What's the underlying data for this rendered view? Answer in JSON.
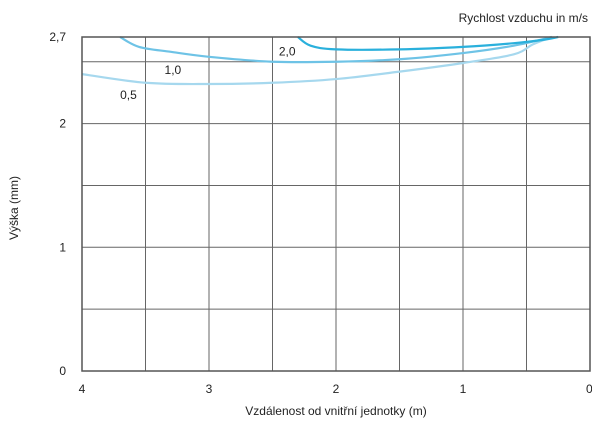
{
  "chart_data": {
    "type": "line",
    "legend_title": "Rychlost vzduchu in m/s",
    "xlabel": "Vzdálenost od vnitřní jednotky (m)",
    "ylabel": "Výška (mm)",
    "xlim": [
      4,
      0
    ],
    "ylim": [
      0,
      2.7
    ],
    "x_ticks": [
      "4",
      "3",
      "2",
      "1",
      "0"
    ],
    "y_ticks": [
      "0",
      "1",
      "2",
      "2,7"
    ],
    "grid": true,
    "series": [
      {
        "name": "0,5",
        "color": "#a6d8ee",
        "points": [
          [
            4.0,
            2.4
          ],
          [
            3.5,
            2.33
          ],
          [
            3.0,
            2.32
          ],
          [
            2.5,
            2.33
          ],
          [
            2.0,
            2.36
          ],
          [
            1.5,
            2.42
          ],
          [
            1.0,
            2.49
          ],
          [
            0.6,
            2.56
          ],
          [
            0.45,
            2.64
          ],
          [
            0.3,
            2.7
          ]
        ]
      },
      {
        "name": "1,0",
        "color": "#6ec3e6",
        "points": [
          [
            3.7,
            2.7
          ],
          [
            3.55,
            2.62
          ],
          [
            3.3,
            2.58
          ],
          [
            3.0,
            2.54
          ],
          [
            2.5,
            2.5
          ],
          [
            2.0,
            2.5
          ],
          [
            1.5,
            2.52
          ],
          [
            1.0,
            2.57
          ],
          [
            0.6,
            2.63
          ],
          [
            0.3,
            2.7
          ]
        ]
      },
      {
        "name": "2,0",
        "color": "#2ab0dc",
        "points": [
          [
            2.3,
            2.7
          ],
          [
            2.2,
            2.63
          ],
          [
            2.0,
            2.6
          ],
          [
            1.5,
            2.6
          ],
          [
            1.0,
            2.62
          ],
          [
            0.6,
            2.65
          ],
          [
            0.35,
            2.68
          ],
          [
            0.25,
            2.7
          ]
        ]
      }
    ]
  }
}
